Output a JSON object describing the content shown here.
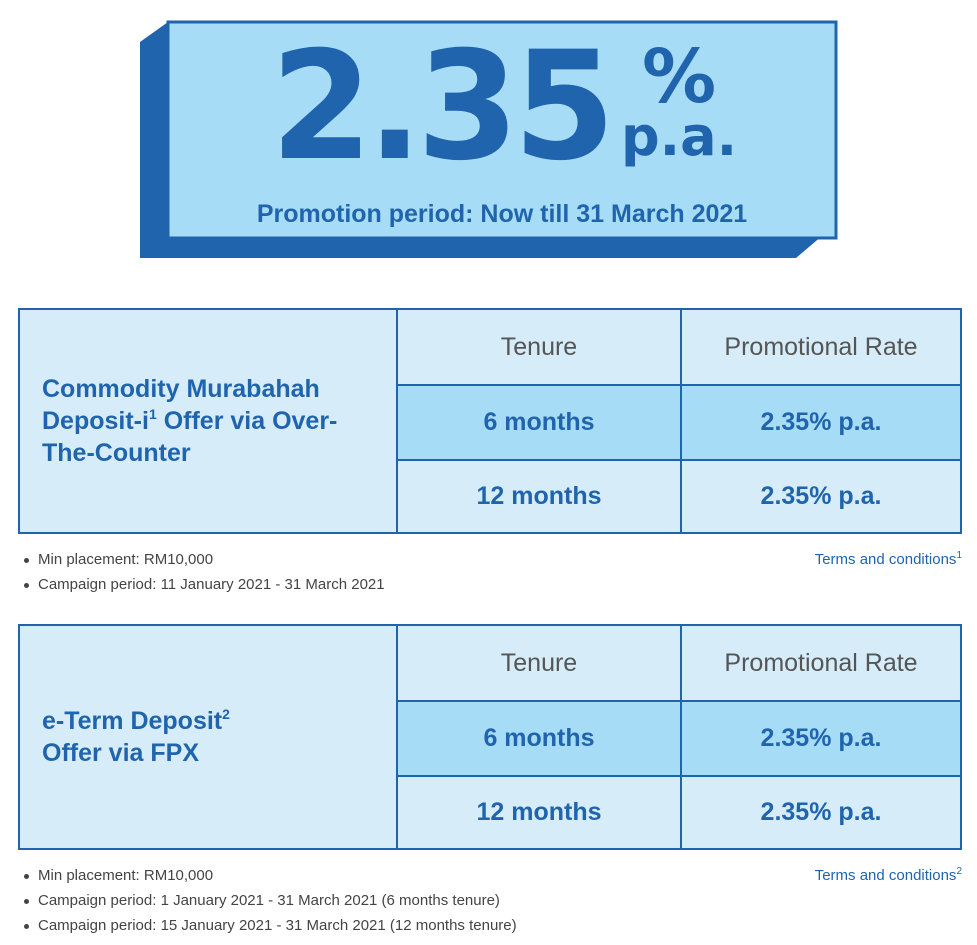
{
  "hero": {
    "rate_number": "2.35",
    "rate_percent": "%",
    "rate_pa": "p.a.",
    "promotion_period": "Promotion period: Now till 31 March 2021",
    "colors": {
      "face": "#a6dcf6",
      "side": "#1f64ad",
      "text": "#1f64ad"
    }
  },
  "offers": [
    {
      "title": "Commodity Murabahah Deposit-i",
      "title_sup": "1",
      "title_tail": " Offer via Over-The-Counter",
      "header_tenure": "Tenure",
      "header_rate": "Promotional Rate",
      "rows": [
        {
          "tenure": "6 months",
          "rate": "2.35% p.a."
        },
        {
          "tenure": "12 months",
          "rate": "2.35% p.a."
        }
      ],
      "notes": [
        "Min placement: RM10,000",
        "Campaign period: 11 January 2021 - 31 March 2021"
      ],
      "terms_label": "Terms and conditions",
      "terms_sup": "1"
    },
    {
      "title": "e-Term Deposit",
      "title_sup": "2",
      "title_tail": "Offer via FPX",
      "header_tenure": "Tenure",
      "header_rate": "Promotional Rate",
      "rows": [
        {
          "tenure": "6 months",
          "rate": "2.35% p.a."
        },
        {
          "tenure": "12 months",
          "rate": "2.35% p.a."
        }
      ],
      "notes": [
        "Min placement: RM10,000",
        "Campaign period: 1 January 2021 - 31 March 2021 (6 months tenure)",
        "Campaign period: 15 January 2021 - 31 March 2021 (12 months tenure)"
      ],
      "terms_label": "Terms and conditions",
      "terms_sup": "2"
    }
  ],
  "colors": {
    "border": "#1f64ad",
    "cell_light": "#d6edf9",
    "cell_highlight": "#a6dcf6",
    "header_text": "#555555"
  }
}
